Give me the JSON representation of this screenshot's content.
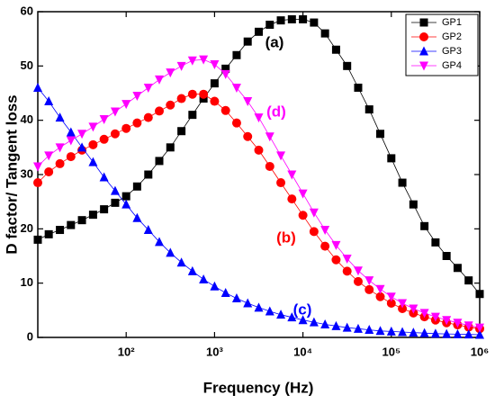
{
  "chart_data": {
    "type": "line",
    "x_label": "Frequency (Hz)",
    "y_label": "D factor/ Tangent loss",
    "x_log": true,
    "xlim": [
      10,
      1000000
    ],
    "ylim": [
      0,
      60
    ],
    "xticks": [
      {
        "value": 100,
        "label": "10²"
      },
      {
        "value": 1000,
        "label": "10³"
      },
      {
        "value": 10000,
        "label": "10⁴"
      },
      {
        "value": 100000,
        "label": "10⁵"
      },
      {
        "value": 1000000,
        "label": "10⁶"
      }
    ],
    "yticks": [
      0,
      10,
      20,
      30,
      40,
      50,
      60
    ],
    "legend": "upper right",
    "x": [
      10,
      13.3,
      17.8,
      23.7,
      31.6,
      42.2,
      56.2,
      75,
      100,
      133,
      178,
      237,
      316,
      422,
      562,
      750,
      1000,
      1334,
      1778,
      2371,
      3162,
      4217,
      5623,
      7499,
      10000,
      13335,
      17783,
      23714,
      31623,
      42170,
      56234,
      74989,
      100000,
      133352,
      177828,
      237137,
      316228,
      421697,
      562341,
      749894,
      1000000
    ],
    "series": [
      {
        "name": "GP1",
        "color": "#000000",
        "marker": "square",
        "values": [
          18,
          19,
          19.8,
          20.7,
          21.6,
          22.6,
          23.6,
          24.8,
          26,
          27.8,
          30,
          32.5,
          35,
          38,
          41,
          44,
          46.8,
          49.5,
          52,
          54.5,
          56.3,
          57.6,
          58.4,
          58.6,
          58.6,
          58,
          56,
          53,
          50,
          46,
          42,
          37.5,
          33,
          28.5,
          24.5,
          20.5,
          17.5,
          15,
          12.8,
          10.5,
          8
        ]
      },
      {
        "name": "GP2",
        "color": "#ff0000",
        "marker": "circle",
        "values": [
          28.5,
          30.5,
          32,
          33.3,
          34.5,
          35.5,
          36.5,
          37.5,
          38.5,
          39.5,
          40.5,
          41.7,
          42.8,
          44,
          44.8,
          44.8,
          43.5,
          41.8,
          39.5,
          37,
          34.5,
          31.5,
          28.5,
          25.5,
          22.5,
          19.5,
          16.8,
          14.3,
          12.2,
          10.3,
          8.8,
          7.5,
          6.3,
          5.3,
          4.5,
          3.8,
          3.2,
          2.7,
          2.3,
          1.9,
          1.6
        ]
      },
      {
        "name": "GP3",
        "color": "#0000ff",
        "marker": "triangle-up",
        "values": [
          46,
          43.5,
          40.5,
          37.8,
          35,
          32.3,
          29.5,
          27,
          24.5,
          22,
          19.8,
          17.6,
          15.6,
          13.8,
          12.2,
          10.7,
          9.4,
          8.2,
          7.2,
          6.3,
          5.5,
          4.8,
          4.2,
          3.7,
          3.2,
          2.8,
          2.4,
          2.1,
          1.8,
          1.6,
          1.4,
          1.2,
          1.1,
          1,
          0.9,
          0.8,
          0.7,
          0.65,
          0.6,
          0.55,
          0.5
        ]
      },
      {
        "name": "GP4",
        "color": "#ff00ff",
        "marker": "triangle-down",
        "values": [
          31.5,
          33.5,
          35,
          36.3,
          37.5,
          38.8,
          40.2,
          41.6,
          43,
          44.5,
          46,
          47.5,
          48.8,
          50,
          51,
          51.2,
          50.3,
          48.5,
          46,
          43.5,
          40.5,
          37,
          33.5,
          30,
          26.5,
          23,
          19.8,
          17,
          14.5,
          12.3,
          10.5,
          8.9,
          7.5,
          6.3,
          5.3,
          4.5,
          3.8,
          3.2,
          2.7,
          2.2,
          1.8
        ]
      }
    ],
    "annotations": [
      {
        "text": "(a)",
        "color": "#000000"
      },
      {
        "text": "(d)",
        "color": "#ff00ff"
      },
      {
        "text": "(b)",
        "color": "#ff0000"
      },
      {
        "text": "(c)",
        "color": "#0000ff"
      }
    ]
  }
}
